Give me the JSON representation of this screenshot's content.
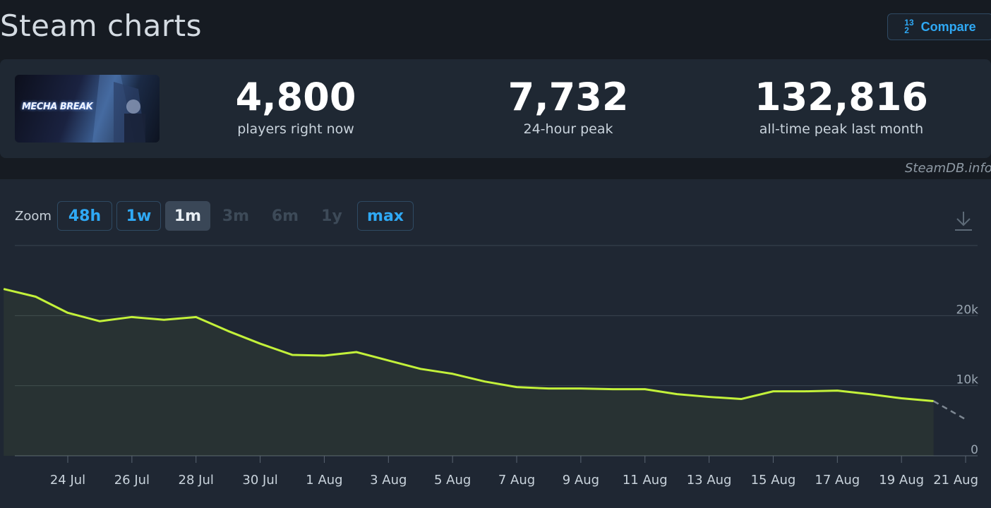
{
  "header": {
    "title": "Steam charts",
    "compare_label": "Compare",
    "compare_icon_top": "1",
    "compare_icon_mid": "3",
    "compare_icon_bot": "2"
  },
  "game": {
    "logo_text": "MECHA BREAK"
  },
  "stats": {
    "current_players": "4,800",
    "current_label": "players right now",
    "peak_24h": "7,732",
    "peak_24h_label": "24-hour peak",
    "peak_all": "132,816",
    "peak_all_label": "all-time peak last month"
  },
  "watermark": "SteamDB.info",
  "zoom": {
    "label": "Zoom",
    "options": [
      {
        "label": "48h",
        "state": "enabled"
      },
      {
        "label": "1w",
        "state": "enabled"
      },
      {
        "label": "1m",
        "state": "active"
      },
      {
        "label": "3m",
        "state": "disabled"
      },
      {
        "label": "6m",
        "state": "disabled"
      },
      {
        "label": "1y",
        "state": "disabled"
      },
      {
        "label": "max",
        "state": "enabled"
      }
    ]
  },
  "colors": {
    "line": "#c3f13a",
    "projection": "#7d8792",
    "grid": "#3a4450",
    "accent": "#2fa9f5"
  },
  "chart_data": {
    "type": "line",
    "title": "",
    "xlabel": "",
    "ylabel": "",
    "x_ticks": [
      "24 Jul",
      "26 Jul",
      "28 Jul",
      "30 Jul",
      "1 Aug",
      "3 Aug",
      "5 Aug",
      "7 Aug",
      "9 Aug",
      "11 Aug",
      "13 Aug",
      "15 Aug",
      "17 Aug",
      "19 Aug",
      "21 Aug"
    ],
    "y_ticks": [
      "0",
      "10k",
      "20k"
    ],
    "ylim": [
      0,
      30000
    ],
    "grid": true,
    "series": [
      {
        "points": [
          [
            "22 Jul",
            23800
          ],
          [
            "23 Jul",
            22700
          ],
          [
            "24 Jul",
            20400
          ],
          [
            "25 Jul",
            19200
          ],
          [
            "26 Jul",
            19800
          ],
          [
            "27 Jul",
            19400
          ],
          [
            "28 Jul",
            19800
          ],
          [
            "29 Jul",
            17800
          ],
          [
            "30 Jul",
            16000
          ],
          [
            "31 Jul",
            14400
          ],
          [
            "1 Aug",
            14300
          ],
          [
            "2 Aug",
            14800
          ],
          [
            "3 Aug",
            13600
          ],
          [
            "4 Aug",
            12400
          ],
          [
            "5 Aug",
            11700
          ],
          [
            "6 Aug",
            10600
          ],
          [
            "7 Aug",
            9800
          ],
          [
            "8 Aug",
            9600
          ],
          [
            "9 Aug",
            9600
          ],
          [
            "10 Aug",
            9500
          ],
          [
            "11 Aug",
            9500
          ],
          [
            "12 Aug",
            8800
          ],
          [
            "13 Aug",
            8400
          ],
          [
            "14 Aug",
            8100
          ],
          [
            "15 Aug",
            9200
          ],
          [
            "16 Aug",
            9200
          ],
          [
            "17 Aug",
            9300
          ],
          [
            "18 Aug",
            8800
          ],
          [
            "19 Aug",
            8200
          ],
          [
            "20 Aug",
            7800
          ]
        ]
      }
    ],
    "projection": [
      [
        "20 Aug",
        7800
      ],
      [
        "21 Aug",
        5200
      ]
    ]
  }
}
